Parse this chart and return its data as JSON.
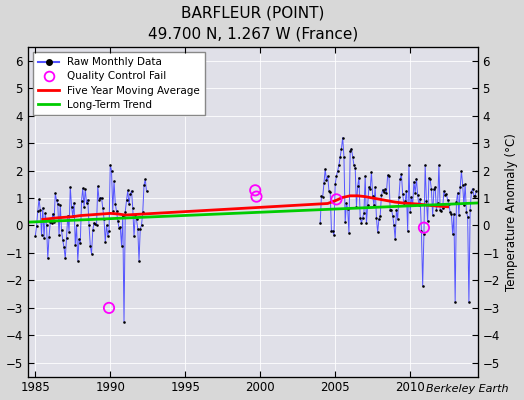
{
  "title": "BARFLEUR (POINT)",
  "subtitle": "49.700 N, 1.267 W (France)",
  "ylabel": "Temperature Anomaly (°C)",
  "attribution": "Berkeley Earth",
  "xlim": [
    1984.5,
    2014.5
  ],
  "ylim": [
    -5.5,
    6.5
  ],
  "yticks": [
    -5,
    -4,
    -3,
    -2,
    -1,
    0,
    1,
    2,
    3,
    4,
    5,
    6
  ],
  "xticks": [
    1985,
    1990,
    1995,
    2000,
    2005,
    2010
  ],
  "fig_bg_color": "#d8d8d8",
  "plot_bg_color": "#e0e0e8",
  "grid_color": "#ffffff",
  "raw_color": "#5555ff",
  "dot_color": "#000000",
  "qc_color": "#ff00ff",
  "moving_avg_color": "#ff0000",
  "trend_color": "#00cc00",
  "trend_x": [
    1984.5,
    2014.5
  ],
  "trend_y": [
    0.12,
    0.82
  ],
  "moving_avg_x": [
    1985.5,
    1986.5,
    1987.5,
    1988.0,
    1988.5,
    1989.0,
    1989.5,
    1990.0,
    1990.5,
    1991.0,
    2004.5,
    2005.0,
    2005.5,
    2006.0,
    2006.5,
    2007.0,
    2007.5,
    2008.0,
    2008.5,
    2009.0,
    2009.5,
    2010.0,
    2010.5,
    2011.0,
    2011.5,
    2012.0,
    2012.5
  ],
  "moving_avg_y": [
    0.22,
    0.28,
    0.32,
    0.36,
    0.38,
    0.4,
    0.42,
    0.44,
    0.42,
    0.38,
    0.8,
    0.9,
    1.02,
    1.08,
    1.08,
    1.05,
    1.0,
    0.95,
    0.9,
    0.85,
    0.82,
    0.8,
    0.78,
    0.75,
    0.72,
    0.7,
    0.68
  ],
  "qc_x": [
    1989.917,
    1999.667,
    1999.75,
    2005.083,
    2010.917
  ],
  "qc_y": [
    -3.0,
    1.28,
    1.05,
    0.95,
    -0.08
  ],
  "early_gap_end": 1992.5,
  "late_gap_start": 2004.0
}
